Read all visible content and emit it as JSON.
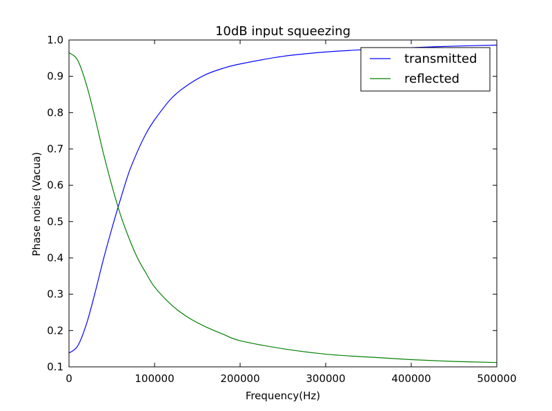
{
  "chart_data": {
    "type": "line",
    "title": "10dB input squeezing",
    "xlabel": "Frequency(Hz)",
    "ylabel": "Phase noise (Vacua)",
    "xlim": [
      0,
      500000
    ],
    "ylim": [
      0.1,
      1.0
    ],
    "x_ticks": [
      0,
      100000,
      200000,
      300000,
      400000,
      500000
    ],
    "x_tick_labels": [
      "0",
      "100000",
      "200000",
      "300000",
      "400000",
      "500000"
    ],
    "y_ticks": [
      0.1,
      0.2,
      0.3,
      0.4,
      0.5,
      0.6,
      0.7,
      0.8,
      0.9,
      1.0
    ],
    "y_tick_labels": [
      "0.1",
      "0.2",
      "0.3",
      "0.4",
      "0.5",
      "0.6",
      "0.7",
      "0.8",
      "0.9",
      "1.0"
    ],
    "grid": false,
    "legend": "top-right",
    "x": [
      0,
      10000,
      20000,
      30000,
      40000,
      50000,
      60000,
      70000,
      80000,
      90000,
      100000,
      120000,
      140000,
      160000,
      180000,
      200000,
      250000,
      300000,
      350000,
      400000,
      450000,
      500000
    ],
    "series": [
      {
        "name": "transmitted",
        "color": "#0000ff",
        "values": [
          0.138,
          0.157,
          0.215,
          0.3,
          0.394,
          0.48,
          0.56,
          0.635,
          0.693,
          0.742,
          0.78,
          0.84,
          0.878,
          0.905,
          0.922,
          0.934,
          0.955,
          0.967,
          0.974,
          0.979,
          0.983,
          0.986
        ]
      },
      {
        "name": "reflected",
        "color": "#008000",
        "values": [
          0.965,
          0.945,
          0.88,
          0.79,
          0.69,
          0.6,
          0.52,
          0.455,
          0.4,
          0.358,
          0.32,
          0.27,
          0.235,
          0.21,
          0.19,
          0.172,
          0.15,
          0.135,
          0.127,
          0.12,
          0.115,
          0.112
        ]
      }
    ]
  }
}
